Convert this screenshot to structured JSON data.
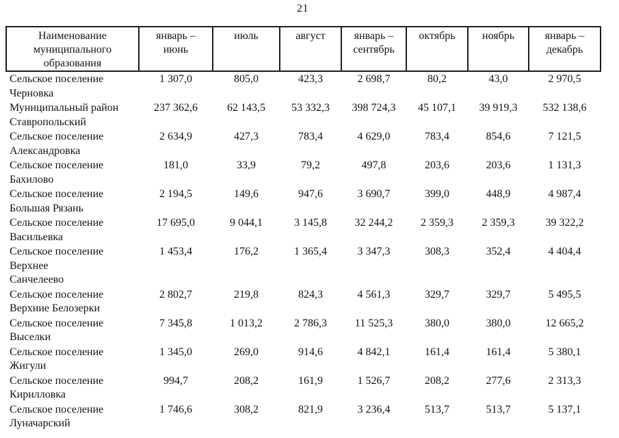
{
  "page": {
    "number": "21"
  },
  "table": {
    "columns": [
      "Наименование\nмуниципального\nобразования",
      "январь –\nиюнь",
      "июль",
      "август",
      "январь –\nсентябрь",
      "октябрь",
      "ноябрь",
      "январь –\nдекабрь"
    ],
    "rows": [
      {
        "name": "Сельское поселение\nЧерновка",
        "values": [
          "1 307,0",
          "805,0",
          "423,3",
          "2 698,7",
          "80,2",
          "43,0",
          "2 970,5"
        ]
      },
      {
        "name": "Муниципальный район\nСтавропольский",
        "values": [
          "237 362,6",
          "62 143,5",
          "53 332,3",
          "398 724,3",
          "45 107,1",
          "39 919,3",
          "532 138,6"
        ]
      },
      {
        "name": "Сельское поселение\nАлександровка",
        "values": [
          "2 634,9",
          "427,3",
          "783,4",
          "4 629,0",
          "783,4",
          "854,6",
          "7 121,5"
        ]
      },
      {
        "name": "Сельское поселение\nБахилово",
        "values": [
          "181,0",
          "33,9",
          "79,2",
          "497,8",
          "203,6",
          "203,6",
          "1 131,3"
        ]
      },
      {
        "name": "Сельское поселение\nБольшая Рязань",
        "values": [
          "2 194,5",
          "149,6",
          "947,6",
          "3 690,7",
          "399,0",
          "448,9",
          "4 987,4"
        ]
      },
      {
        "name": "Сельское поселение\nВасильевка",
        "values": [
          "17 695,0",
          "9 044,1",
          "3 145,8",
          "32 244,2",
          "2 359,3",
          "2 359,3",
          "39 322,2"
        ]
      },
      {
        "name": "Сельское поселение Верхнее\nСанчелеево",
        "values": [
          "1 453,4",
          "176,2",
          "1 365,4",
          "3 347,3",
          "308,3",
          "352,4",
          "4 404,4"
        ]
      },
      {
        "name": "Сельское поселение\nВерхние Белозерки",
        "values": [
          "2 802,7",
          "219,8",
          "824,3",
          "4 561,3",
          "329,7",
          "329,7",
          "5 495,5"
        ]
      },
      {
        "name": "Сельское поселение\nВыселки",
        "values": [
          "7 345,8",
          "1 013,2",
          "2 786,3",
          "11 525,3",
          "380,0",
          "380,0",
          "12 665,2"
        ]
      },
      {
        "name": "Сельское поселение Жигули",
        "values": [
          "1 345,0",
          "269,0",
          "914,6",
          "4 842,1",
          "161,4",
          "161,4",
          "5 380,1"
        ]
      },
      {
        "name": "Сельское поселение\nКирилловка",
        "values": [
          "994,7",
          "208,2",
          "161,9",
          "1 526,7",
          "208,2",
          "277,6",
          "2 313,3"
        ]
      },
      {
        "name": "Сельское поселение\nЛуначарский",
        "values": [
          "1 746,6",
          "308,2",
          "821,9",
          "3 236,4",
          "513,7",
          "513,7",
          "5 137,1"
        ]
      }
    ]
  }
}
